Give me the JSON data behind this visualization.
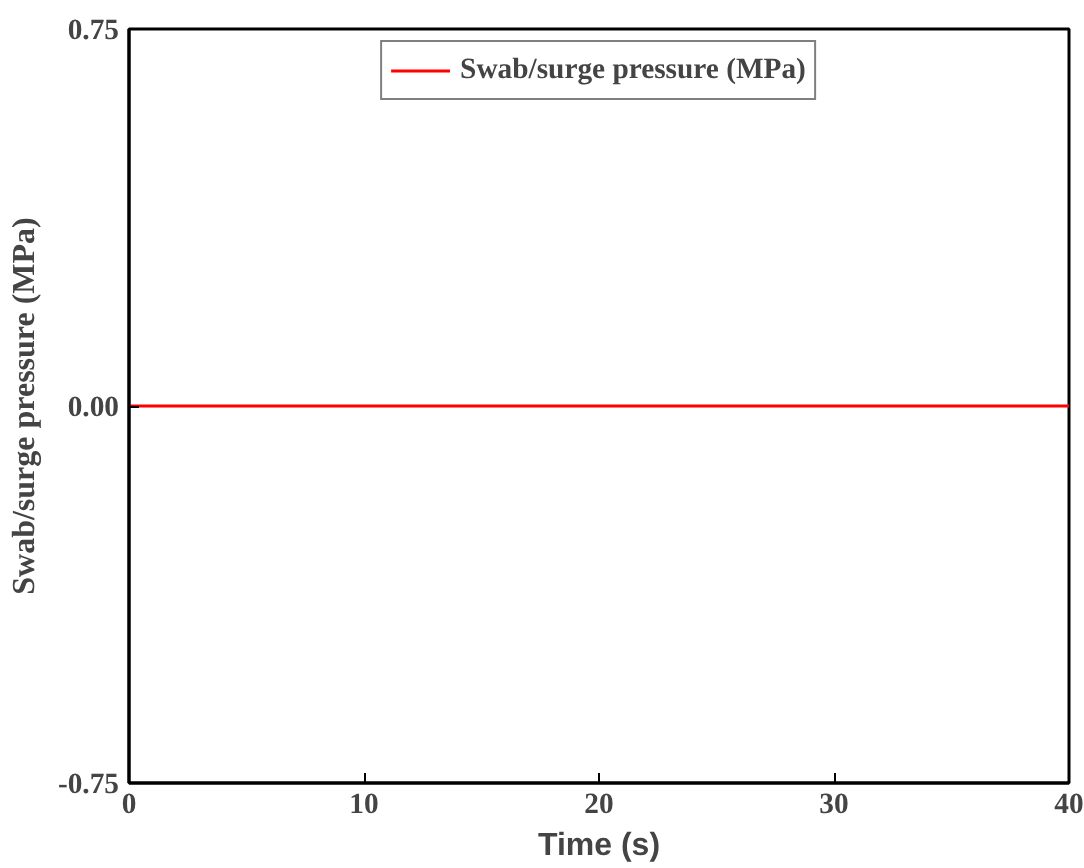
{
  "chart_data": {
    "type": "line",
    "xlabel": "Time (s)",
    "ylabel": "Swab/surge pressure (MPa)",
    "series": [
      {
        "name": "Swab/surge pressure (MPa)",
        "color": "#ff0000",
        "x": [
          0,
          40
        ],
        "values": [
          0,
          0
        ]
      }
    ],
    "xlim": [
      0,
      40
    ],
    "ylim": [
      -0.75,
      0.75
    ],
    "xticks": [
      0,
      10,
      20,
      30,
      40
    ],
    "yticks": [
      {
        "value": -0.75,
        "label": "-0.75"
      },
      {
        "value": 0,
        "label": "0.00"
      },
      {
        "value": 0.75,
        "label": "0.75"
      }
    ],
    "grid": false,
    "legend": "top",
    "line_style": "solid",
    "marker": "none"
  }
}
